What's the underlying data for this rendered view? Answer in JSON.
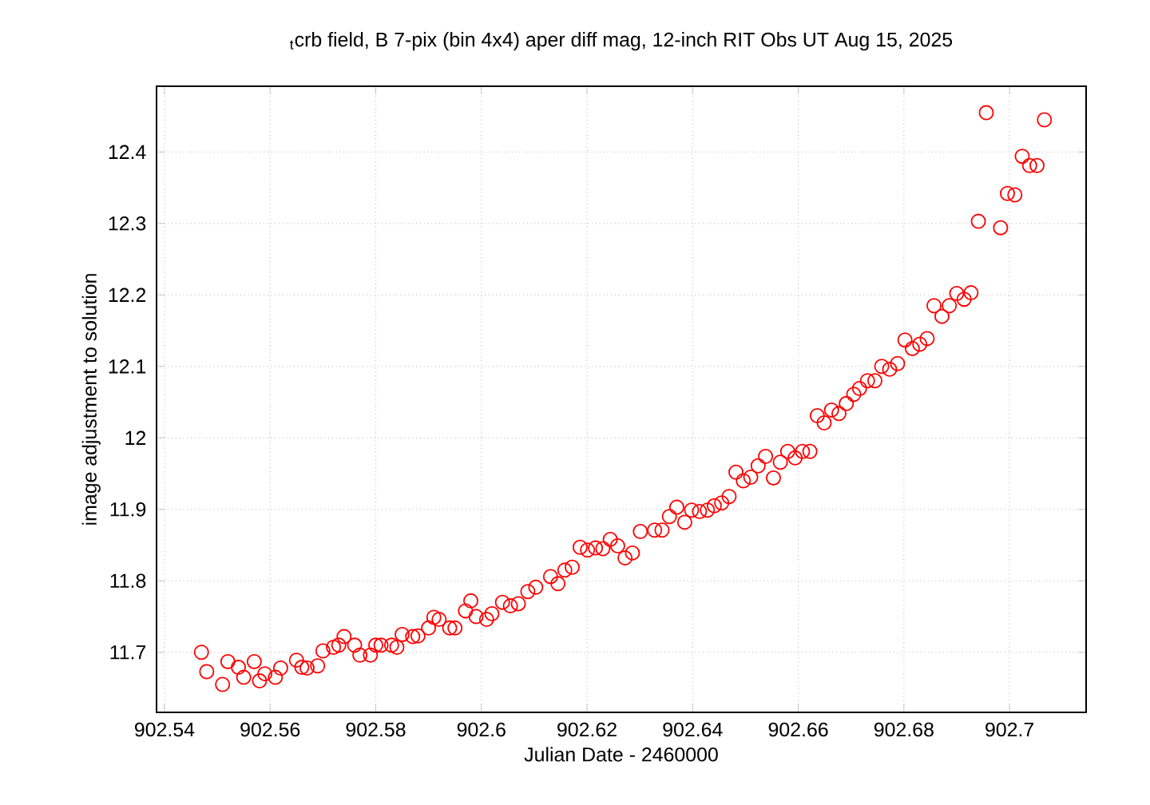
{
  "chart_data": {
    "type": "scatter",
    "title": "$_{t}$crb field, B 7-pix (bin 4x4) aper diff mag,  12-inch RIT Obs UT Aug 15, 2025",
    "xlabel": "Julian Date - 2460000",
    "ylabel": "image adjustment to solution",
    "color": "#ff0000",
    "marker": "circle",
    "grid": true,
    "xlim": [
      902.5385,
      902.7145
    ],
    "ylim": [
      11.616,
      12.492
    ],
    "xticks": [
      902.54,
      902.56,
      902.58,
      902.6,
      902.62,
      902.64,
      902.66,
      902.68,
      902.7
    ],
    "yticks": [
      11.7,
      11.8,
      11.9,
      12,
      12.1,
      12.2,
      12.3,
      12.4
    ],
    "x": [
      902.547,
      902.548,
      902.551,
      902.552,
      902.554,
      902.555,
      902.557,
      902.558,
      902.559,
      902.561,
      902.562,
      902.565,
      902.566,
      902.567,
      902.569,
      902.57,
      902.572,
      902.573,
      902.574,
      902.576,
      902.577,
      902.579,
      902.58,
      902.581,
      902.583,
      902.584,
      902.585,
      902.587,
      902.588,
      902.59,
      902.591,
      902.592,
      902.594,
      902.595,
      902.597,
      902.598,
      902.599,
      902.601,
      902.602,
      902.604,
      902.6055,
      902.607,
      902.6088,
      902.6103,
      902.6131,
      902.6145,
      902.6158,
      902.6172,
      902.6187,
      902.6201,
      902.6216,
      902.623,
      902.6244,
      902.6258,
      902.6272,
      902.6286,
      902.6301,
      902.6328,
      902.6342,
      902.6356,
      902.637,
      902.6385,
      902.6398,
      902.6413,
      902.6428,
      902.6441,
      902.6455,
      902.6469,
      902.6482,
      902.6496,
      902.651,
      902.6524,
      902.6538,
      902.6553,
      902.6566,
      902.658,
      902.6594,
      902.6608,
      902.6622,
      902.6636,
      902.6649,
      902.6663,
      902.6677,
      902.6691,
      902.6705,
      902.6716,
      902.6731,
      902.6745,
      902.6758,
      902.6773,
      902.6788,
      902.6802,
      902.6816,
      902.683,
      902.6844,
      902.6857,
      902.6872,
      902.6886,
      902.69,
      902.6914,
      902.6927,
      902.6941,
      902.6956,
      902.6983,
      902.6996,
      902.701,
      902.7024,
      902.7038,
      902.7052,
      902.7066
    ],
    "values": [
      11.7,
      11.673,
      11.655,
      11.687,
      11.679,
      11.665,
      11.687,
      11.66,
      11.67,
      11.665,
      11.678,
      11.689,
      11.679,
      11.678,
      11.681,
      11.702,
      11.707,
      11.71,
      11.722,
      11.71,
      11.696,
      11.696,
      11.71,
      11.71,
      11.71,
      11.707,
      11.725,
      11.722,
      11.723,
      11.734,
      11.749,
      11.746,
      11.734,
      11.734,
      11.758,
      11.772,
      11.75,
      11.746,
      11.754,
      11.77,
      11.765,
      11.768,
      11.785,
      11.791,
      11.806,
      11.796,
      11.815,
      11.819,
      11.847,
      11.843,
      11.846,
      11.845,
      11.858,
      11.849,
      11.832,
      11.839,
      11.869,
      11.871,
      11.871,
      11.89,
      11.903,
      11.882,
      11.899,
      11.897,
      11.899,
      11.905,
      11.909,
      11.918,
      11.952,
      11.94,
      11.945,
      11.961,
      11.974,
      11.944,
      11.966,
      11.981,
      11.972,
      11.981,
      11.981,
      12.031,
      12.021,
      12.039,
      12.034,
      12.048,
      12.061,
      12.069,
      12.08,
      12.08,
      12.1,
      12.096,
      12.104,
      12.137,
      12.125,
      12.131,
      12.139,
      12.185,
      12.17,
      12.185,
      12.202,
      12.194,
      12.203,
      12.303,
      12.455,
      12.294,
      12.342,
      12.34,
      12.394,
      12.381,
      12.381,
      12.445
    ]
  }
}
